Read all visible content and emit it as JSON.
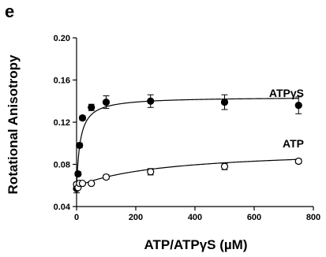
{
  "chart_data": {
    "type": "scatter",
    "panel_label": "e",
    "xlabel": "ATP/ATPγS (µM)",
    "ylabel": "Rotational Anisotropy",
    "xlim": [
      0,
      800
    ],
    "ylim": [
      0.04,
      0.2
    ],
    "xticks": [
      0,
      200,
      400,
      600,
      800
    ],
    "yticks": [
      0.04,
      0.08,
      0.12,
      0.16,
      0.2
    ],
    "grid": false,
    "legend": "none",
    "series": [
      {
        "name": "ATPγS",
        "marker": "filled-circle",
        "x": [
          0,
          5,
          10,
          20,
          50,
          100,
          250,
          500,
          750
        ],
        "y": [
          0.057,
          0.071,
          0.098,
          0.124,
          0.134,
          0.139,
          0.14,
          0.139,
          0.136
        ],
        "yerr": [
          0.004,
          0.002,
          0.002,
          0.002,
          0.003,
          0.006,
          0.006,
          0.007,
          0.008
        ],
        "fit": {
          "model": "hyperbolic",
          "y0": 0.057,
          "bmax": 0.087,
          "kd": 12
        }
      },
      {
        "name": "ATP",
        "marker": "open-circle",
        "x": [
          0,
          5,
          10,
          20,
          50,
          100,
          250,
          500,
          750
        ],
        "y": [
          0.061,
          0.058,
          0.062,
          0.062,
          0.062,
          0.068,
          0.073,
          0.078,
          0.083
        ],
        "yerr": [
          0.002,
          0.001,
          0.001,
          0.001,
          0.001,
          0.002,
          0.003,
          0.003,
          0.002
        ],
        "fit": {
          "model": "hyperbolic",
          "y0": 0.059,
          "bmax": 0.036,
          "kd": 300
        }
      }
    ]
  }
}
